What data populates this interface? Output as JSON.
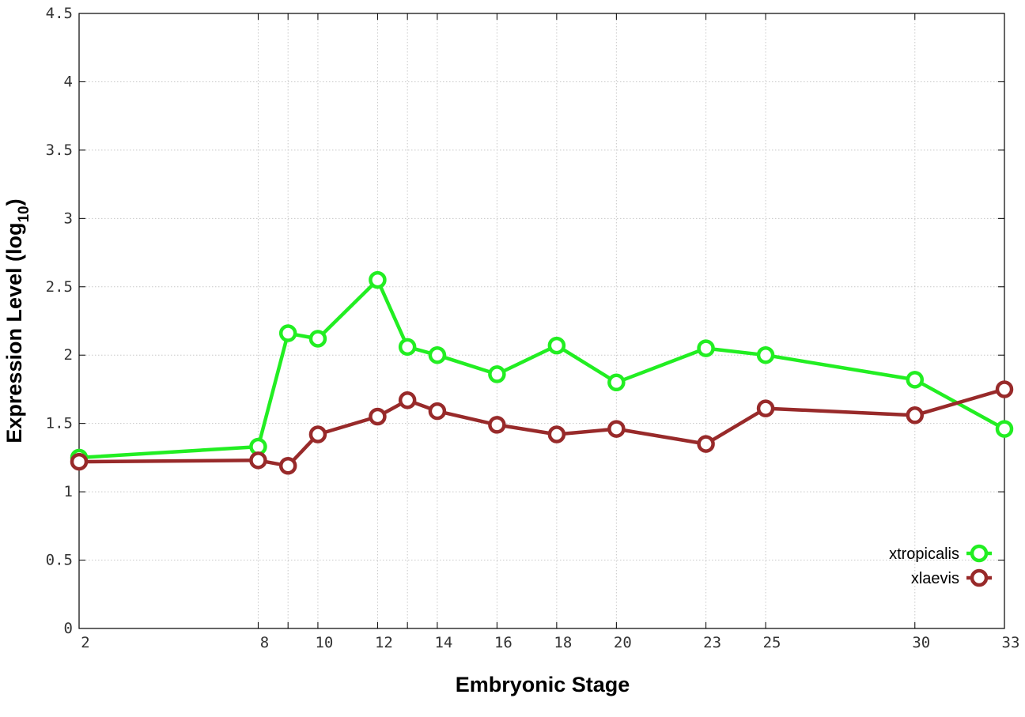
{
  "chart_data": {
    "type": "line",
    "title": "",
    "xlabel": "Embryonic Stage",
    "ylabel": "Expression Level (log",
    "ylabel_subscript": "10",
    "ylabel_suffix": ")",
    "ylim": [
      0,
      4.5
    ],
    "xlim": [
      2,
      33
    ],
    "grid": true,
    "legend_position": "bottom-right",
    "x_ticks": [
      {
        "v": 2,
        "label": "2"
      },
      {
        "v": 8,
        "label": "8"
      },
      {
        "v": 9,
        "label": ""
      },
      {
        "v": 10,
        "label": "10"
      },
      {
        "v": 12,
        "label": "12"
      },
      {
        "v": 13,
        "label": ""
      },
      {
        "v": 14,
        "label": "14"
      },
      {
        "v": 16,
        "label": "16"
      },
      {
        "v": 18,
        "label": "18"
      },
      {
        "v": 20,
        "label": "20"
      },
      {
        "v": 23,
        "label": "23"
      },
      {
        "v": 25,
        "label": "25"
      },
      {
        "v": 30,
        "label": "30"
      },
      {
        "v": 33,
        "label": "33"
      }
    ],
    "y_ticks": [
      {
        "v": 0,
        "label": "0"
      },
      {
        "v": 0.5,
        "label": "0.5"
      },
      {
        "v": 1,
        "label": "1"
      },
      {
        "v": 1.5,
        "label": "1.5"
      },
      {
        "v": 2,
        "label": "2"
      },
      {
        "v": 2.5,
        "label": "2.5"
      },
      {
        "v": 3,
        "label": "3"
      },
      {
        "v": 3.5,
        "label": "3.5"
      },
      {
        "v": 4,
        "label": "4"
      },
      {
        "v": 4.5,
        "label": "4.5"
      }
    ],
    "series": [
      {
        "name": "xtropicalis",
        "color": "#22ee22",
        "x": [
          2,
          8,
          9,
          10,
          12,
          13,
          14,
          16,
          18,
          20,
          23,
          25,
          30,
          33
        ],
        "y": [
          1.25,
          1.33,
          2.16,
          2.12,
          2.55,
          2.06,
          2.0,
          1.86,
          2.07,
          1.8,
          2.05,
          2.0,
          1.82,
          1.46
        ]
      },
      {
        "name": "xlaevis",
        "color": "#982a2a",
        "x": [
          2,
          8,
          9,
          10,
          12,
          13,
          14,
          16,
          18,
          20,
          23,
          25,
          30,
          33
        ],
        "y": [
          1.22,
          1.23,
          1.19,
          1.42,
          1.55,
          1.67,
          1.59,
          1.49,
          1.42,
          1.46,
          1.35,
          1.61,
          1.56,
          1.75
        ]
      }
    ]
  }
}
